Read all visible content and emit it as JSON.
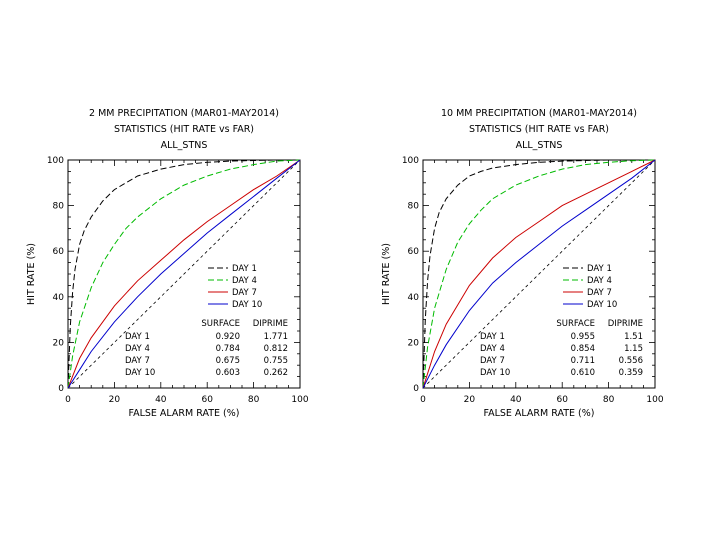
{
  "colors": {
    "background": "#ffffff",
    "axis": "#000000",
    "day1": "#000000",
    "day4": "#00bb00",
    "day7": "#cc0000",
    "day10": "#0000cc",
    "no_skill": "#000000"
  },
  "chart_data": [
    {
      "type": "line",
      "title": "2 MM PRECIPITATION (MAR01-MAY2014)",
      "subtitle": "STATISTICS (HIT RATE vs FAR)",
      "subtitle2": "ALL_STNS",
      "xlabel": "FALSE ALARM RATE (%)",
      "ylabel": "HIT RATE (%)",
      "xlim": [
        0,
        100
      ],
      "ylim": [
        0,
        100
      ],
      "xticks": [
        "0",
        "20",
        "40",
        "60",
        "80",
        "100"
      ],
      "yticks": [
        "0",
        "20",
        "40",
        "60",
        "80",
        "100"
      ],
      "legend_position": "lower-right",
      "series": [
        {
          "name": "DAY 1",
          "color": "#000000",
          "dash": "6,3",
          "x": [
            0,
            1,
            2,
            3,
            5,
            7,
            10,
            15,
            20,
            25,
            30,
            40,
            50,
            60,
            70,
            80,
            90,
            100
          ],
          "y": [
            0,
            27,
            42,
            52,
            63,
            69,
            75,
            82,
            87,
            90,
            93,
            96,
            98,
            99,
            99.5,
            99.8,
            100,
            100
          ]
        },
        {
          "name": "DAY 4",
          "color": "#00bb00",
          "dash": "6,3",
          "x": [
            0,
            2,
            5,
            10,
            15,
            20,
            25,
            30,
            40,
            50,
            60,
            70,
            80,
            90,
            100
          ],
          "y": [
            0,
            14,
            29,
            44,
            55,
            63,
            70,
            75,
            83,
            89,
            93,
            96,
            98,
            99.5,
            100
          ]
        },
        {
          "name": "DAY 7",
          "color": "#cc0000",
          "dash": "none",
          "x": [
            0,
            5,
            10,
            20,
            30,
            40,
            50,
            60,
            70,
            80,
            90,
            100
          ],
          "y": [
            0,
            13,
            22,
            36,
            47,
            56,
            65,
            73,
            80,
            87,
            93,
            100
          ]
        },
        {
          "name": "DAY 10",
          "color": "#0000cc",
          "dash": "none",
          "x": [
            0,
            5,
            10,
            20,
            30,
            40,
            50,
            60,
            70,
            80,
            90,
            100
          ],
          "y": [
            0,
            8,
            16,
            29,
            40,
            50,
            59,
            68,
            76,
            84,
            92,
            100
          ]
        }
      ],
      "table": {
        "headers": [
          "SURFACE",
          "DIPRIME"
        ],
        "rows": [
          {
            "label": "DAY 1",
            "values": [
              "0.920",
              "1.771"
            ]
          },
          {
            "label": "DAY 4",
            "values": [
              "0.784",
              "0.812"
            ]
          },
          {
            "label": "DAY 7",
            "values": [
              "0.675",
              "0.755"
            ]
          },
          {
            "label": "DAY 10",
            "values": [
              "0.603",
              "0.262"
            ]
          }
        ]
      }
    },
    {
      "type": "line",
      "title": "10 MM PRECIPITATION (MAR01-MAY2014)",
      "subtitle": "STATISTICS (HIT RATE vs FAR)",
      "subtitle2": "ALL_STNS",
      "xlabel": "FALSE ALARM RATE (%)",
      "ylabel": "HIT RATE (%)",
      "xlim": [
        0,
        100
      ],
      "ylim": [
        0,
        100
      ],
      "xticks": [
        "0",
        "20",
        "40",
        "60",
        "80",
        "100"
      ],
      "yticks": [
        "0",
        "20",
        "40",
        "60",
        "80",
        "100"
      ],
      "legend_position": "lower-right",
      "series": [
        {
          "name": "DAY 1",
          "color": "#000000",
          "dash": "6,3",
          "x": [
            0,
            1,
            2,
            3,
            5,
            7,
            10,
            15,
            20,
            25,
            30,
            40,
            50,
            60,
            70,
            80,
            90,
            100
          ],
          "y": [
            0,
            30,
            47,
            58,
            70,
            77,
            83,
            89,
            93,
            95,
            96.5,
            98,
            99,
            99.5,
            99.8,
            100,
            100,
            100
          ]
        },
        {
          "name": "DAY 4",
          "color": "#00bb00",
          "dash": "6,3",
          "x": [
            0,
            2,
            5,
            10,
            15,
            20,
            25,
            30,
            40,
            50,
            60,
            70,
            80,
            90,
            100
          ],
          "y": [
            0,
            18,
            35,
            52,
            64,
            72,
            78,
            83,
            89,
            93,
            96,
            98,
            99,
            99.7,
            100
          ]
        },
        {
          "name": "DAY 7",
          "color": "#cc0000",
          "dash": "none",
          "x": [
            0,
            5,
            10,
            20,
            30,
            40,
            50,
            60,
            70,
            80,
            90,
            100
          ],
          "y": [
            0,
            16,
            28,
            45,
            57,
            66,
            73,
            80,
            85,
            90,
            95,
            100
          ]
        },
        {
          "name": "DAY 10",
          "color": "#0000cc",
          "dash": "none",
          "x": [
            0,
            5,
            10,
            20,
            30,
            40,
            50,
            60,
            70,
            80,
            90,
            100
          ],
          "y": [
            0,
            10,
            19,
            34,
            46,
            55,
            63,
            71,
            78,
            85,
            92,
            100
          ]
        }
      ],
      "table": {
        "headers": [
          "SURFACE",
          "DIPRIME"
        ],
        "rows": [
          {
            "label": "DAY 1",
            "values": [
              "0.955",
              "1.51"
            ]
          },
          {
            "label": "DAY 4",
            "values": [
              "0.854",
              "1.15"
            ]
          },
          {
            "label": "DAY 7",
            "values": [
              "0.711",
              "0.556"
            ]
          },
          {
            "label": "DAY 10",
            "values": [
              "0.610",
              "0.359"
            ]
          }
        ]
      }
    }
  ]
}
